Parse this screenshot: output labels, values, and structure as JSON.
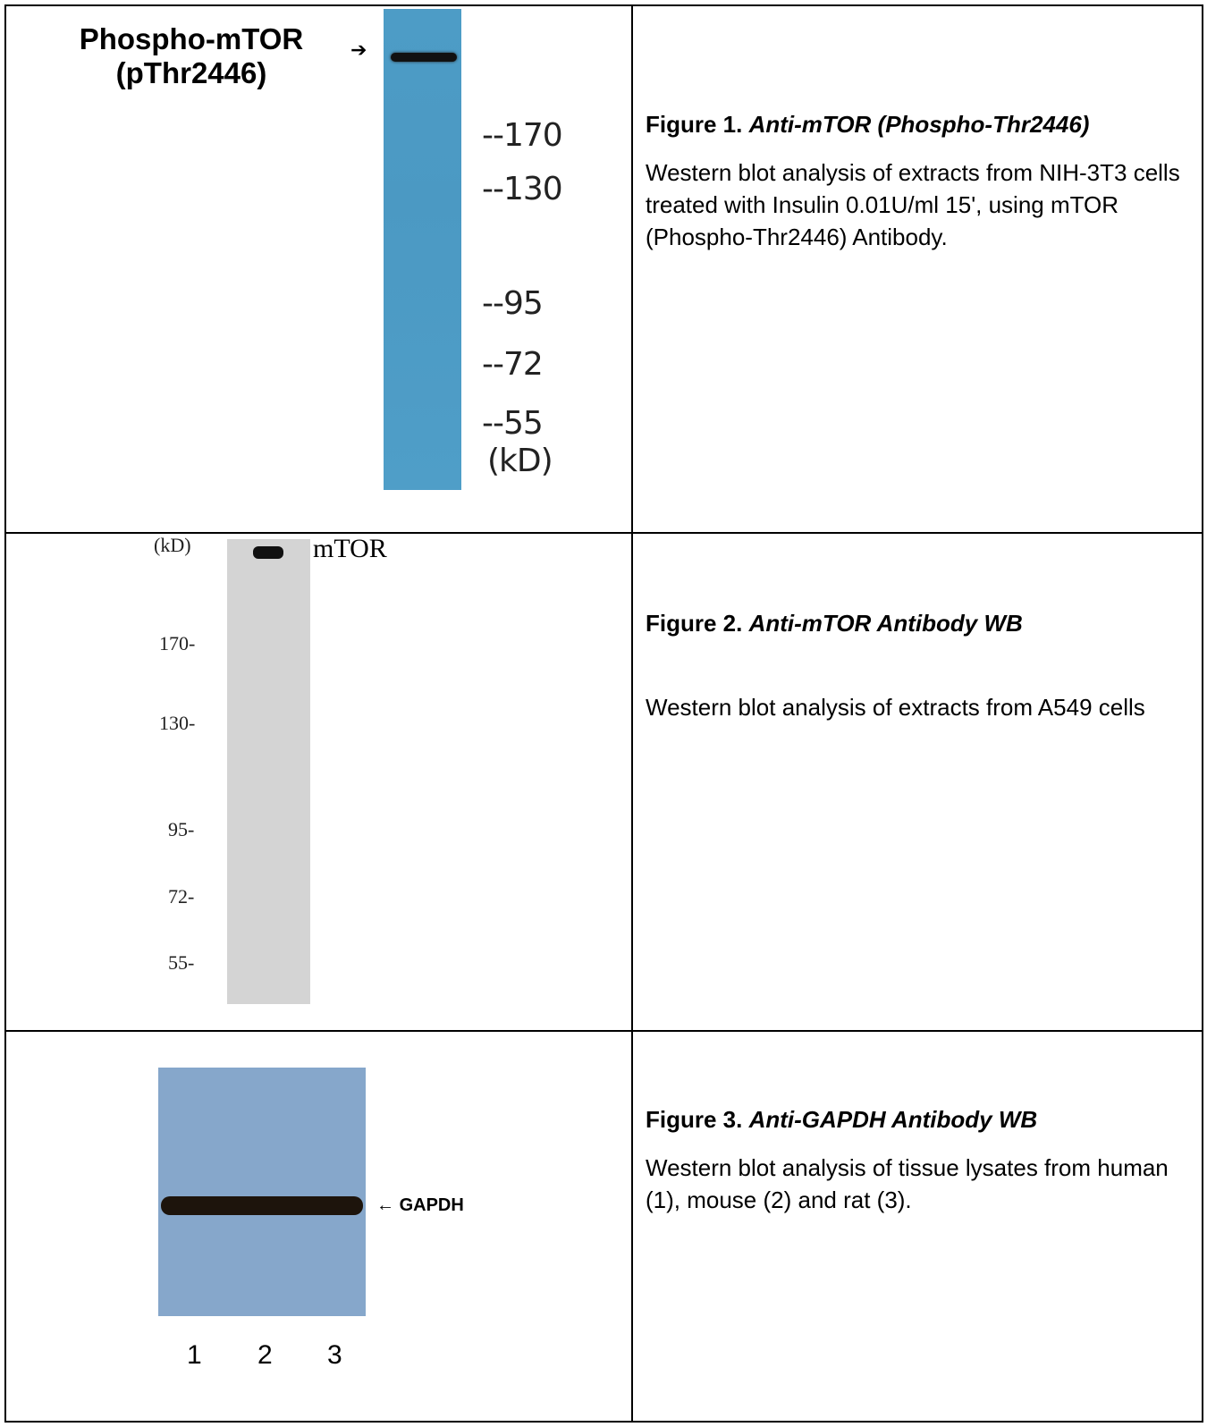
{
  "figures": [
    {
      "title_prefix": "Figure 1.",
      "title_italic": "Anti-mTOR (Phospho-Thr2446)",
      "body": "Western blot analysis of extracts from NIH-3T3 cells treated with Insulin 0.01U/ml 15', using mTOR (Phospho-Thr2446) Antibody.",
      "image": {
        "label_line1": "Phospho-mTOR",
        "label_line2": "(pThr2446)",
        "arrow": "➔",
        "markers": [
          "--170",
          "--130",
          "--95",
          "--72",
          "--55"
        ],
        "unit": "(kD)",
        "lane_color": "#4d9cc6"
      }
    },
    {
      "title_prefix": "Figure 2.",
      "title_italic": "Anti-mTOR Antibody WB",
      "body": "Western blot analysis of extracts from A549 cells",
      "image": {
        "unit": "(kD)",
        "band_label": "mTOR",
        "markers": [
          "170-",
          "130-",
          "95-",
          "72-",
          "55-"
        ],
        "lane_color": "#d4d4d4"
      }
    },
    {
      "title_prefix": "Figure 3.",
      "title_italic": "Anti-GAPDH Antibody WB",
      "body": "Western blot analysis of tissue lysates from human (1), mouse (2) and rat (3).",
      "image": {
        "band_label": "GAPDH",
        "arrow": "←",
        "lanes": [
          "1",
          "2",
          "3"
        ],
        "blot_color": "#86a7cb"
      }
    }
  ]
}
